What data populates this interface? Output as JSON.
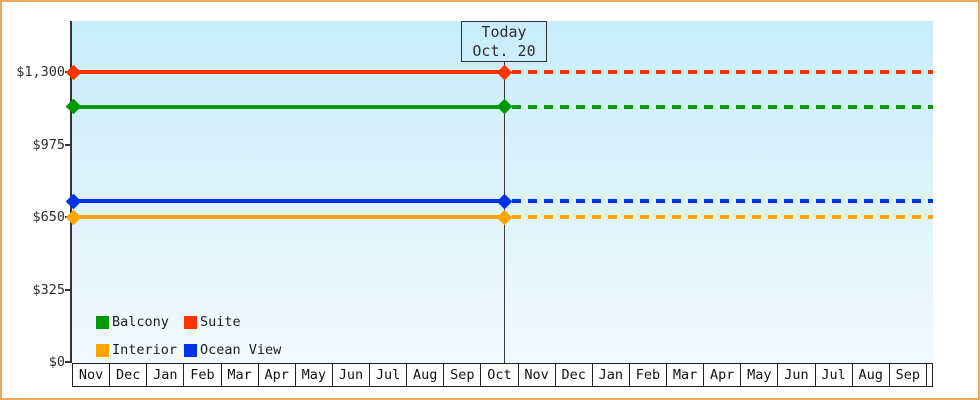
{
  "chart_data": {
    "type": "line",
    "title": "",
    "y_axis": {
      "max": 1300,
      "ticks": [
        {
          "label": "$0",
          "value": 0
        },
        {
          "label": "$325",
          "value": 325
        },
        {
          "label": "$650",
          "value": 650
        },
        {
          "label": "$975",
          "value": 975
        },
        {
          "label": "$1,300",
          "value": 1300
        }
      ]
    },
    "x_axis": {
      "months": [
        "Nov",
        "Dec",
        "Jan",
        "Feb",
        "Mar",
        "Apr",
        "May",
        "Jun",
        "Jul",
        "Aug",
        "Sep",
        "Oct",
        "Nov",
        "Dec",
        "Jan",
        "Feb",
        "Mar",
        "Apr",
        "May",
        "Jun",
        "Jul",
        "Aug",
        "Sep"
      ]
    },
    "today": {
      "line1": "Today",
      "line2": "Oct. 20",
      "month_index": 11,
      "day_fraction": 0.645
    },
    "series": [
      {
        "name": "Balcony",
        "color": "#009900",
        "value": 1145
      },
      {
        "name": "Suite",
        "color": "#FF3300",
        "value": 1300
      },
      {
        "name": "Interior",
        "color": "#FFA500",
        "value": 650
      },
      {
        "name": "Ocean View",
        "color": "#0033E8",
        "value": 720
      }
    ],
    "line_style": {
      "solid_before_today": true,
      "dashed_after_today": true
    },
    "legend_position": "inside-bottom-left",
    "colors": {
      "frame_border": "#EDA954",
      "axis": "#333333",
      "text": "#2E2E2E",
      "plot_gradient_top": "#C8EDFA",
      "plot_gradient_bottom": "#F2FAFD"
    }
  }
}
